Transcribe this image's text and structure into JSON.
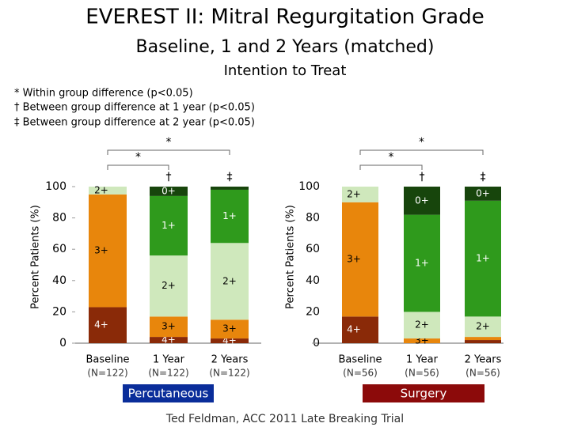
{
  "title": "EVEREST II: Mitral Regurgitation Grade",
  "subtitle": "Baseline, 1 and 2 Years (matched)",
  "subtitle2": "Intention to Treat",
  "footnotes": [
    "* Within group difference (p<0.05)",
    "† Between group difference at 1 year (p<0.05)",
    "‡ Between group difference at 2 year (p<0.05)"
  ],
  "footer": "Ted Feldman, ACC 2011 Late Breaking Trial",
  "chart_data": [
    {
      "type": "bar",
      "stacked": true,
      "group_label": "Percutaneous",
      "group_color": "#0a2d9a",
      "ylabel": "Percent Patients (%)",
      "categories": [
        "Baseline",
        "1 Year",
        "2 Years"
      ],
      "n_labels": [
        "(N=122)",
        "(N=122)",
        "(N=122)"
      ],
      "ylim": [
        0,
        100
      ],
      "yticks": [
        0,
        20,
        40,
        60,
        80,
        100
      ],
      "series": [
        {
          "name": "4+",
          "color": "#8a2a08",
          "values": [
            23,
            4,
            3
          ]
        },
        {
          "name": "3+",
          "color": "#e8860c",
          "values": [
            72,
            13,
            12
          ]
        },
        {
          "name": "2+",
          "color": "#cfe8bc",
          "values": [
            5,
            39,
            49
          ]
        },
        {
          "name": "1+",
          "color": "#2f9a1c",
          "values": [
            null,
            38,
            34
          ]
        },
        {
          "name": "0+",
          "color": "#17450c",
          "values": [
            null,
            6,
            2
          ]
        }
      ],
      "annotations": [
        {
          "text": "*",
          "from": 0,
          "to": 2
        },
        {
          "text": "*",
          "from": 0,
          "to": 1
        },
        {
          "text": "†",
          "at": 1
        },
        {
          "text": "‡",
          "at": 2
        }
      ]
    },
    {
      "type": "bar",
      "stacked": true,
      "group_label": "Surgery",
      "group_color": "#8c0a0a",
      "ylabel": "Percent Patients (%)",
      "categories": [
        "Baseline",
        "1 Year",
        "2 Years"
      ],
      "n_labels": [
        "(N=56)",
        "(N=56)",
        "(N=56)"
      ],
      "ylim": [
        0,
        100
      ],
      "yticks": [
        0,
        20,
        40,
        60,
        80,
        100
      ],
      "series": [
        {
          "name": "4+",
          "color": "#8a2a08",
          "values": [
            17,
            null,
            2
          ]
        },
        {
          "name": "3+",
          "color": "#e8860c",
          "values": [
            73,
            3,
            2
          ]
        },
        {
          "name": "2+",
          "color": "#cfe8bc",
          "values": [
            10,
            17,
            13
          ]
        },
        {
          "name": "1+",
          "color": "#2f9a1c",
          "values": [
            null,
            62,
            74
          ]
        },
        {
          "name": "0+",
          "color": "#17450c",
          "values": [
            null,
            18,
            9
          ]
        }
      ],
      "annotations": [
        {
          "text": "*",
          "from": 0,
          "to": 2
        },
        {
          "text": "*",
          "from": 0,
          "to": 1
        },
        {
          "text": "†",
          "at": 1
        },
        {
          "text": "‡",
          "at": 2
        }
      ]
    }
  ]
}
